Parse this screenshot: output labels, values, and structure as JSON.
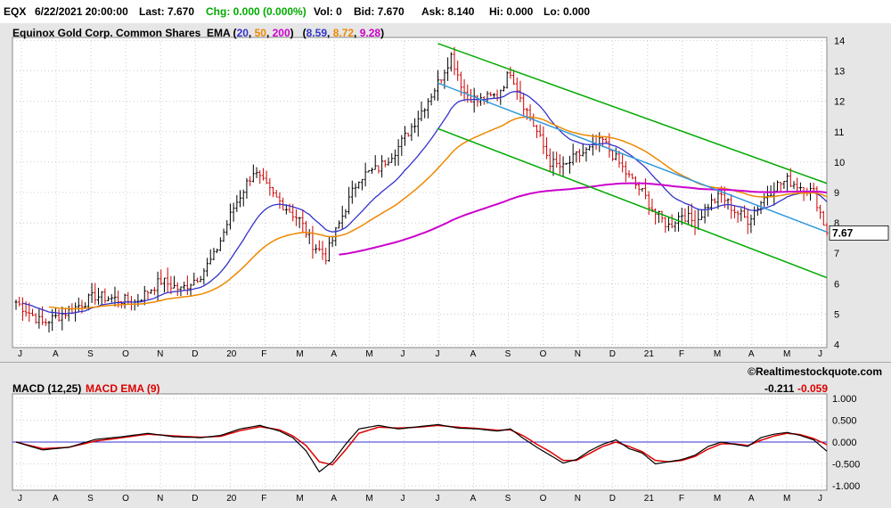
{
  "quote": {
    "symbol": "EQX",
    "datetime": "6/22/2021 20:00:00",
    "last": "Last: 7.670",
    "chg": "Chg: 0.000 (0.000%)",
    "vol": "Vol: 0",
    "bid": "Bid: 7.670",
    "ask": "Ask: 8.140",
    "hi": "Hi: 0.000",
    "lo": "Lo: 0.000"
  },
  "legend": {
    "title": "Equinox Gold Corp. Common Shares",
    "ema_label": "EMA (",
    "ema_periods": [
      "20",
      "50",
      "200"
    ],
    "ema_values": [
      "8.59",
      "8.72",
      "9.28"
    ]
  },
  "last_price_tag": "7.67",
  "watermark": "©Realtimestockquote.com",
  "macd": {
    "label": "MACD (12,25)",
    "ema_label": "MACD EMA (9)",
    "macd_value": "-0.211",
    "signal_value": "-0.059"
  },
  "colors": {
    "up_bar": "#000000",
    "down_bar": "#cc0000",
    "ema20": "#3333cc",
    "ema50": "#ee8800",
    "ema200": "#cc00cc",
    "channel": "#00aa00",
    "trend": "#3399dd",
    "macd_line": "#000000",
    "macd_signal": "#dd0000",
    "zero_line": "#3333cc"
  },
  "chart_data": [
    {
      "type": "ohlc",
      "x_ticks": [
        "J",
        "A",
        "S",
        "O",
        "N",
        "D",
        "20",
        "F",
        "M",
        "A",
        "M",
        "J",
        "J",
        "A",
        "S",
        "O",
        "N",
        "D",
        "21",
        "F",
        "M",
        "A",
        "M",
        "J"
      ],
      "y_ticks": [
        4,
        5,
        6,
        7,
        8,
        9,
        10,
        11,
        12,
        13,
        14
      ],
      "ylim": [
        3.9,
        14.1
      ],
      "last": 7.67,
      "series": [
        {
          "name": "EMA 20",
          "value": 8.59
        },
        {
          "name": "EMA 50",
          "value": 8.72
        },
        {
          "name": "EMA 200",
          "value": 9.28
        }
      ],
      "price_path": [
        [
          0,
          5.4
        ],
        [
          8,
          4.7
        ],
        [
          16,
          5.1
        ],
        [
          24,
          5.6
        ],
        [
          30,
          5.5
        ],
        [
          36,
          5.4
        ],
        [
          44,
          6.1
        ],
        [
          50,
          5.8
        ],
        [
          56,
          6.3
        ],
        [
          60,
          6.9
        ],
        [
          66,
          8.5
        ],
        [
          72,
          9.7
        ],
        [
          78,
          8.9
        ],
        [
          82,
          8.5
        ],
        [
          86,
          8.1
        ],
        [
          90,
          7.3
        ],
        [
          94,
          6.9
        ],
        [
          100,
          8.5
        ],
        [
          104,
          9.5
        ],
        [
          110,
          9.8
        ],
        [
          116,
          10.5
        ],
        [
          122,
          11.5
        ],
        [
          128,
          12.6
        ],
        [
          132,
          13.5
        ],
        [
          136,
          12.3
        ],
        [
          140,
          12.0
        ],
        [
          146,
          12.2
        ],
        [
          150,
          13.0
        ],
        [
          154,
          11.9
        ],
        [
          158,
          11.0
        ],
        [
          162,
          10.0
        ],
        [
          166,
          9.8
        ],
        [
          170,
          10.2
        ],
        [
          174,
          10.4
        ],
        [
          178,
          10.7
        ],
        [
          182,
          10.1
        ],
        [
          186,
          9.5
        ],
        [
          190,
          9.0
        ],
        [
          194,
          8.3
        ],
        [
          198,
          7.9
        ],
        [
          202,
          8.3
        ],
        [
          206,
          8.0
        ],
        [
          210,
          8.6
        ],
        [
          214,
          8.9
        ],
        [
          218,
          8.4
        ],
        [
          222,
          8.1
        ],
        [
          226,
          8.7
        ],
        [
          230,
          9.2
        ],
        [
          234,
          9.4
        ],
        [
          238,
          9.2
        ],
        [
          242,
          9.0
        ],
        [
          246,
          7.67
        ]
      ],
      "channel": {
        "upper": [
          [
            0,
            13.9
          ],
          [
            1,
            9.3
          ]
        ],
        "lower": [
          [
            0,
            11.1
          ],
          [
            1,
            6.2
          ]
        ]
      },
      "trend": [
        [
          0,
          12.6
        ],
        [
          1,
          7.7
        ]
      ]
    },
    {
      "type": "line",
      "title": "MACD (12,25)",
      "y_ticks": [
        1.0,
        0.5,
        0.0,
        -0.5,
        -1.0
      ],
      "y_tick_labels": [
        "1.000",
        "0.500",
        "0.000",
        "-0.500",
        "-1.000"
      ],
      "ylim": [
        -1.1,
        1.1
      ],
      "x_ticks": [
        "J",
        "A",
        "S",
        "O",
        "N",
        "D",
        "20",
        "F",
        "M",
        "A",
        "M",
        "J",
        "J",
        "A",
        "S",
        "O",
        "N",
        "D",
        "21",
        "F",
        "M",
        "A",
        "M",
        "J"
      ],
      "series": [
        {
          "name": "MACD (12,25)",
          "last": -0.211
        },
        {
          "name": "MACD EMA (9)",
          "last": -0.059
        }
      ],
      "macd_path": [
        [
          0,
          0.0
        ],
        [
          8,
          -0.18
        ],
        [
          16,
          -0.12
        ],
        [
          24,
          0.06
        ],
        [
          32,
          0.12
        ],
        [
          40,
          0.2
        ],
        [
          48,
          0.12
        ],
        [
          56,
          0.1
        ],
        [
          62,
          0.15
        ],
        [
          68,
          0.3
        ],
        [
          74,
          0.38
        ],
        [
          80,
          0.25
        ],
        [
          84,
          0.1
        ],
        [
          88,
          -0.2
        ],
        [
          92,
          -0.68
        ],
        [
          96,
          -0.45
        ],
        [
          100,
          -0.05
        ],
        [
          104,
          0.3
        ],
        [
          110,
          0.38
        ],
        [
          116,
          0.3
        ],
        [
          122,
          0.35
        ],
        [
          128,
          0.4
        ],
        [
          134,
          0.32
        ],
        [
          140,
          0.3
        ],
        [
          146,
          0.25
        ],
        [
          150,
          0.3
        ],
        [
          154,
          0.08
        ],
        [
          158,
          -0.12
        ],
        [
          162,
          -0.3
        ],
        [
          166,
          -0.48
        ],
        [
          170,
          -0.4
        ],
        [
          174,
          -0.2
        ],
        [
          178,
          -0.05
        ],
        [
          182,
          0.05
        ],
        [
          186,
          -0.15
        ],
        [
          190,
          -0.25
        ],
        [
          194,
          -0.5
        ],
        [
          198,
          -0.45
        ],
        [
          202,
          -0.4
        ],
        [
          206,
          -0.3
        ],
        [
          210,
          -0.1
        ],
        [
          214,
          0.0
        ],
        [
          218,
          -0.05
        ],
        [
          222,
          -0.1
        ],
        [
          226,
          0.1
        ],
        [
          230,
          0.18
        ],
        [
          234,
          0.22
        ],
        [
          238,
          0.15
        ],
        [
          242,
          0.05
        ],
        [
          246,
          -0.21
        ]
      ],
      "signal_path": [
        [
          0,
          0.0
        ],
        [
          8,
          -0.15
        ],
        [
          16,
          -0.12
        ],
        [
          24,
          0.02
        ],
        [
          32,
          0.1
        ],
        [
          40,
          0.18
        ],
        [
          48,
          0.14
        ],
        [
          56,
          0.11
        ],
        [
          62,
          0.13
        ],
        [
          68,
          0.26
        ],
        [
          74,
          0.35
        ],
        [
          80,
          0.28
        ],
        [
          84,
          0.14
        ],
        [
          88,
          -0.08
        ],
        [
          92,
          -0.45
        ],
        [
          96,
          -0.52
        ],
        [
          100,
          -0.18
        ],
        [
          104,
          0.2
        ],
        [
          110,
          0.34
        ],
        [
          116,
          0.32
        ],
        [
          122,
          0.34
        ],
        [
          128,
          0.38
        ],
        [
          134,
          0.34
        ],
        [
          140,
          0.31
        ],
        [
          146,
          0.27
        ],
        [
          150,
          0.28
        ],
        [
          154,
          0.14
        ],
        [
          158,
          -0.05
        ],
        [
          162,
          -0.22
        ],
        [
          166,
          -0.42
        ],
        [
          170,
          -0.42
        ],
        [
          174,
          -0.26
        ],
        [
          178,
          -0.1
        ],
        [
          182,
          0.0
        ],
        [
          186,
          -0.1
        ],
        [
          190,
          -0.22
        ],
        [
          194,
          -0.42
        ],
        [
          198,
          -0.45
        ],
        [
          202,
          -0.42
        ],
        [
          206,
          -0.33
        ],
        [
          210,
          -0.16
        ],
        [
          214,
          -0.04
        ],
        [
          218,
          -0.04
        ],
        [
          222,
          -0.08
        ],
        [
          226,
          0.04
        ],
        [
          230,
          0.14
        ],
        [
          234,
          0.2
        ],
        [
          238,
          0.17
        ],
        [
          242,
          0.08
        ],
        [
          246,
          -0.06
        ]
      ]
    }
  ]
}
